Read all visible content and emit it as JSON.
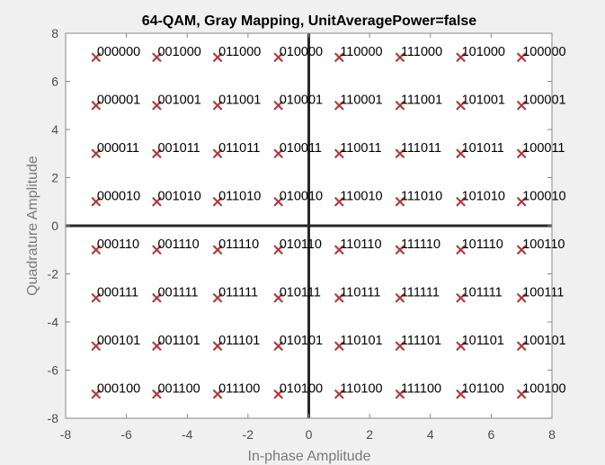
{
  "chart_data": {
    "type": "scatter",
    "title": "64-QAM, Gray Mapping, UnitAveragePower=false",
    "xlabel": "In-phase Amplitude",
    "ylabel": "Quadrature Amplitude",
    "xlim": [
      -8,
      8
    ],
    "ylim": [
      -8,
      8
    ],
    "xticks": [
      -8,
      -6,
      -4,
      -2,
      0,
      2,
      4,
      6,
      8
    ],
    "yticks": [
      -8,
      -6,
      -4,
      -2,
      0,
      2,
      4,
      6,
      8
    ],
    "grid": false,
    "marker": "x",
    "colors": {
      "marker": "#b23a3a",
      "axes_background": "#ffffff",
      "figure_background": "#f0f0f0",
      "reference_lines": "#262626",
      "axis_frame": "#8a8a8a"
    },
    "points": [
      {
        "x": -7,
        "y": 7,
        "label": "000000"
      },
      {
        "x": -5,
        "y": 7,
        "label": "001000"
      },
      {
        "x": -3,
        "y": 7,
        "label": "011000"
      },
      {
        "x": -1,
        "y": 7,
        "label": "010000"
      },
      {
        "x": 1,
        "y": 7,
        "label": "110000"
      },
      {
        "x": 3,
        "y": 7,
        "label": "111000"
      },
      {
        "x": 5,
        "y": 7,
        "label": "101000"
      },
      {
        "x": 7,
        "y": 7,
        "label": "100000"
      },
      {
        "x": -7,
        "y": 5,
        "label": "000001"
      },
      {
        "x": -5,
        "y": 5,
        "label": "001001"
      },
      {
        "x": -3,
        "y": 5,
        "label": "011001"
      },
      {
        "x": -1,
        "y": 5,
        "label": "010001"
      },
      {
        "x": 1,
        "y": 5,
        "label": "110001"
      },
      {
        "x": 3,
        "y": 5,
        "label": "111001"
      },
      {
        "x": 5,
        "y": 5,
        "label": "101001"
      },
      {
        "x": 7,
        "y": 5,
        "label": "100001"
      },
      {
        "x": -7,
        "y": 3,
        "label": "000011"
      },
      {
        "x": -5,
        "y": 3,
        "label": "001011"
      },
      {
        "x": -3,
        "y": 3,
        "label": "011011"
      },
      {
        "x": -1,
        "y": 3,
        "label": "010011"
      },
      {
        "x": 1,
        "y": 3,
        "label": "110011"
      },
      {
        "x": 3,
        "y": 3,
        "label": "111011"
      },
      {
        "x": 5,
        "y": 3,
        "label": "101011"
      },
      {
        "x": 7,
        "y": 3,
        "label": "100011"
      },
      {
        "x": -7,
        "y": 1,
        "label": "000010"
      },
      {
        "x": -5,
        "y": 1,
        "label": "001010"
      },
      {
        "x": -3,
        "y": 1,
        "label": "011010"
      },
      {
        "x": -1,
        "y": 1,
        "label": "010010"
      },
      {
        "x": 1,
        "y": 1,
        "label": "110010"
      },
      {
        "x": 3,
        "y": 1,
        "label": "111010"
      },
      {
        "x": 5,
        "y": 1,
        "label": "101010"
      },
      {
        "x": 7,
        "y": 1,
        "label": "100010"
      },
      {
        "x": -7,
        "y": -1,
        "label": "000110"
      },
      {
        "x": -5,
        "y": -1,
        "label": "001110"
      },
      {
        "x": -3,
        "y": -1,
        "label": "011110"
      },
      {
        "x": -1,
        "y": -1,
        "label": "010110"
      },
      {
        "x": 1,
        "y": -1,
        "label": "110110"
      },
      {
        "x": 3,
        "y": -1,
        "label": "111110"
      },
      {
        "x": 5,
        "y": -1,
        "label": "101110"
      },
      {
        "x": 7,
        "y": -1,
        "label": "100110"
      },
      {
        "x": -7,
        "y": -3,
        "label": "000111"
      },
      {
        "x": -5,
        "y": -3,
        "label": "001111"
      },
      {
        "x": -3,
        "y": -3,
        "label": "011111"
      },
      {
        "x": -1,
        "y": -3,
        "label": "010111"
      },
      {
        "x": 1,
        "y": -3,
        "label": "110111"
      },
      {
        "x": 3,
        "y": -3,
        "label": "111111"
      },
      {
        "x": 5,
        "y": -3,
        "label": "101111"
      },
      {
        "x": 7,
        "y": -3,
        "label": "100111"
      },
      {
        "x": -7,
        "y": -5,
        "label": "000101"
      },
      {
        "x": -5,
        "y": -5,
        "label": "001101"
      },
      {
        "x": -3,
        "y": -5,
        "label": "011101"
      },
      {
        "x": -1,
        "y": -5,
        "label": "010101"
      },
      {
        "x": 1,
        "y": -5,
        "label": "110101"
      },
      {
        "x": 3,
        "y": -5,
        "label": "111101"
      },
      {
        "x": 5,
        "y": -5,
        "label": "101101"
      },
      {
        "x": 7,
        "y": -5,
        "label": "100101"
      },
      {
        "x": -7,
        "y": -7,
        "label": "000100"
      },
      {
        "x": -5,
        "y": -7,
        "label": "001100"
      },
      {
        "x": -3,
        "y": -7,
        "label": "011100"
      },
      {
        "x": -1,
        "y": -7,
        "label": "010100"
      },
      {
        "x": 1,
        "y": -7,
        "label": "110100"
      },
      {
        "x": 3,
        "y": -7,
        "label": "111100"
      },
      {
        "x": 5,
        "y": -7,
        "label": "101100"
      },
      {
        "x": 7,
        "y": -7,
        "label": "100100"
      }
    ]
  }
}
